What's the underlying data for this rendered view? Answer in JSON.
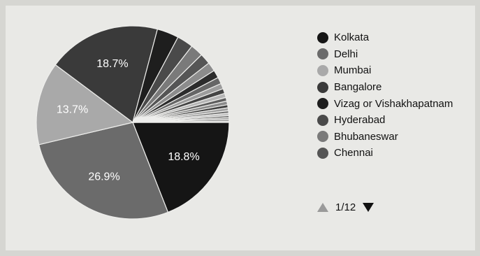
{
  "chart_data": {
    "type": "pie",
    "title": "",
    "slices": [
      {
        "label": "Kolkata",
        "value": 18.8,
        "label_text": "18.8%",
        "color": "#151515"
      },
      {
        "label": "Delhi",
        "value": 26.9,
        "label_text": "26.9%",
        "color": "#6b6b6b"
      },
      {
        "label": "Mumbai",
        "value": 13.7,
        "label_text": "13.7%",
        "color": "#a9a9a9"
      },
      {
        "label": "Bangalore",
        "value": 18.7,
        "label_text": "18.7%",
        "color": "#3a3a3a"
      },
      {
        "label": "Vizag or Vishakhapatnam",
        "value": 3.6,
        "label_text": "",
        "color": "#1e1e1e"
      },
      {
        "label": "Hyderabad",
        "value": 2.7,
        "label_text": "",
        "color": "#4a4a4a"
      },
      {
        "label": "Bhubaneswar",
        "value": 2.1,
        "label_text": "",
        "color": "#7a7a7a"
      },
      {
        "label": "Chennai",
        "value": 1.8,
        "label_text": "",
        "color": "#555555"
      },
      {
        "label": "",
        "value": 1.5,
        "label_text": "",
        "color": "#8c8c8c"
      },
      {
        "label": "",
        "value": 1.3,
        "label_text": "",
        "color": "#2c2c2c"
      },
      {
        "label": "",
        "value": 1.1,
        "label_text": "",
        "color": "#666666"
      },
      {
        "label": "",
        "value": 0.9,
        "label_text": "",
        "color": "#9c9c9c"
      },
      {
        "label": "",
        "value": 0.8,
        "label_text": "",
        "color": "#444444"
      },
      {
        "label": "",
        "value": 0.7,
        "label_text": "",
        "color": "#b5b5b5"
      },
      {
        "label": "",
        "value": 0.6,
        "label_text": "",
        "color": "#5e5e5e"
      },
      {
        "label": "",
        "value": 0.6,
        "label_text": "",
        "color": "#8a8a8a"
      },
      {
        "label": "",
        "value": 0.5,
        "label_text": "",
        "color": "#3f3f3f"
      },
      {
        "label": "",
        "value": 0.5,
        "label_text": "",
        "color": "#a0a0a0"
      },
      {
        "label": "",
        "value": 0.4,
        "label_text": "",
        "color": "#6f6f6f"
      },
      {
        "label": "",
        "value": 0.4,
        "label_text": "",
        "color": "#c2c2c2"
      },
      {
        "label": "",
        "value": 0.3,
        "label_text": "",
        "color": "#505050"
      },
      {
        "label": "",
        "value": 0.3,
        "label_text": "",
        "color": "#999999"
      },
      {
        "label": "",
        "value": 0.3,
        "label_text": "",
        "color": "#7c7c7c"
      },
      {
        "label": "",
        "value": 0.2,
        "label_text": "",
        "color": "#b0b0b0"
      }
    ],
    "legend_placement": "right"
  },
  "legend": {
    "items": [
      {
        "label": "Kolkata",
        "color": "#151515"
      },
      {
        "label": "Delhi",
        "color": "#6b6b6b"
      },
      {
        "label": "Mumbai",
        "color": "#a9a9a9"
      },
      {
        "label": "Bangalore",
        "color": "#3a3a3a"
      },
      {
        "label": "Vizag or Vishakhapatnam",
        "color": "#1e1e1e"
      },
      {
        "label": "Hyderabad",
        "color": "#4a4a4a"
      },
      {
        "label": "Bhubaneswar",
        "color": "#7a7a7a"
      },
      {
        "label": "Chennai",
        "color": "#555555"
      }
    ],
    "pager": {
      "text": "1/12",
      "up_icon": "triangle-up-icon",
      "down_icon": "triangle-down-icon"
    }
  }
}
